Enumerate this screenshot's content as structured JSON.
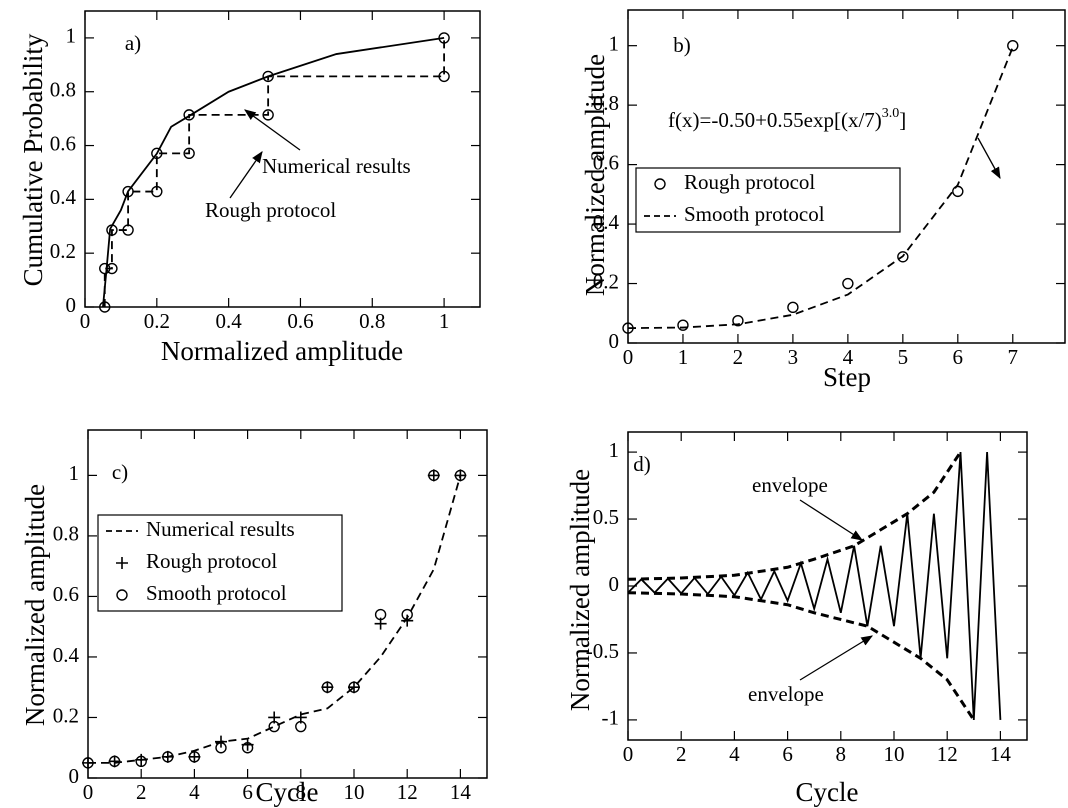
{
  "chart_data": [
    {
      "type": "line",
      "label": "a)",
      "xlabel": "Normalized amplitude",
      "ylabel": "Cumulative Probability",
      "xlim": [
        0,
        1.1
      ],
      "ylim": [
        0,
        1.1
      ],
      "xticks": [
        0,
        0.2,
        0.4,
        0.6,
        0.8,
        1
      ],
      "yticks": [
        0,
        0.2,
        0.4,
        0.6,
        0.8,
        1
      ],
      "series": [
        {
          "name": "Numerical results",
          "color": "#000000",
          "dash": false,
          "marker": "none",
          "x": [
            0.05,
            0.06,
            0.07,
            0.1,
            0.12,
            0.2,
            0.24,
            0.29,
            0.4,
            0.51,
            0.7,
            1
          ],
          "values": [
            0,
            0.14,
            0.29,
            0.36,
            0.43,
            0.57,
            0.67,
            0.71,
            0.8,
            0.857,
            0.94,
            1
          ]
        },
        {
          "name": "Rough protocol",
          "color": "#000000",
          "dash": true,
          "marker": "circle",
          "x": [
            0.055,
            0.055,
            0.075,
            0.075,
            0.12,
            0.12,
            0.2,
            0.2,
            0.29,
            0.29,
            0.51,
            0.51,
            1,
            1
          ],
          "values": [
            0,
            0.143,
            0.143,
            0.286,
            0.286,
            0.429,
            0.429,
            0.571,
            0.571,
            0.714,
            0.714,
            0.857,
            0.857,
            1
          ]
        }
      ],
      "annotations": [
        "Numerical results",
        "Rough protocol"
      ]
    },
    {
      "type": "line",
      "label": "b)",
      "xlabel": "Step",
      "ylabel": "Normalized amplitude",
      "xlim": [
        0,
        7.95
      ],
      "ylim": [
        0,
        1.12
      ],
      "xticks": [
        0,
        1,
        2,
        3,
        4,
        5,
        6,
        7
      ],
      "yticks": [
        0,
        0.2,
        0.4,
        0.6,
        0.8,
        1
      ],
      "legend": "center left",
      "series": [
        {
          "name": "Rough protocol",
          "color": "#000000",
          "dash": false,
          "line": false,
          "marker": "circle",
          "x": [
            0,
            1,
            2,
            3,
            4,
            5,
            6,
            7
          ],
          "values": [
            0.05,
            0.06,
            0.075,
            0.12,
            0.2,
            0.29,
            0.51,
            1
          ]
        },
        {
          "name": "Smooth protocol",
          "color": "#000000",
          "dash": true,
          "marker": "none",
          "x": [
            0,
            1,
            2,
            3,
            4,
            5,
            6,
            7
          ],
          "values": [
            0.05,
            0.052,
            0.063,
            0.095,
            0.163,
            0.292,
            0.532,
            0.995
          ]
        }
      ],
      "formula": [
        "f(x)=-0.50+0.55exp[(x/7)",
        "3.0",
        "]"
      ]
    },
    {
      "type": "line",
      "label": "c)",
      "xlabel": "Cycle",
      "ylabel": "Normalized amplitude",
      "xlim": [
        0,
        15
      ],
      "ylim": [
        0,
        1.15
      ],
      "xticks": [
        0,
        2,
        4,
        6,
        8,
        10,
        12,
        14
      ],
      "yticks": [
        0,
        0.2,
        0.4,
        0.6,
        0.8,
        1
      ],
      "legend": "center left",
      "series": [
        {
          "name": "Numerical results",
          "color": "#000000",
          "dash": true,
          "marker": "none",
          "x": [
            0,
            1,
            2,
            3,
            4,
            5,
            6,
            7,
            8,
            9,
            10,
            11,
            12,
            13,
            14
          ],
          "values": [
            0.05,
            0.05,
            0.06,
            0.07,
            0.09,
            0.12,
            0.13,
            0.17,
            0.21,
            0.23,
            0.3,
            0.4,
            0.53,
            0.69,
            1
          ]
        },
        {
          "name": "Rough protocol",
          "color": "#000000",
          "dash": false,
          "line": false,
          "marker": "plus",
          "x": [
            0,
            1,
            2,
            3,
            4,
            5,
            6,
            7,
            8,
            9,
            10,
            11,
            12,
            13,
            14
          ],
          "values": [
            0.05,
            0.055,
            0.06,
            0.07,
            0.07,
            0.12,
            0.11,
            0.2,
            0.2,
            0.3,
            0.3,
            0.51,
            0.52,
            1,
            1
          ]
        },
        {
          "name": "Smooth protocol",
          "color": "#000000",
          "dash": false,
          "line": false,
          "marker": "circle",
          "x": [
            0,
            1,
            2,
            3,
            4,
            5,
            6,
            7,
            8,
            9,
            10,
            11,
            12,
            13,
            14
          ],
          "values": [
            0.05,
            0.055,
            0.055,
            0.07,
            0.07,
            0.1,
            0.1,
            0.17,
            0.17,
            0.3,
            0.3,
            0.54,
            0.54,
            1,
            1
          ]
        }
      ]
    },
    {
      "type": "line",
      "label": "d)",
      "xlabel": "Cycle",
      "ylabel": "Normalized amplitude",
      "xlim": [
        0,
        15
      ],
      "ylim": [
        -1.15,
        1.15
      ],
      "xticks": [
        0,
        2,
        4,
        6,
        8,
        10,
        12,
        14
      ],
      "yticks": [
        -1,
        -0.5,
        0,
        0.5,
        1
      ],
      "series": [
        {
          "color": "#000000",
          "dash": false,
          "marker": "none",
          "x": [
            0,
            0.5,
            1,
            1.5,
            2,
            2.5,
            3,
            3.5,
            4,
            4.5,
            5,
            5.5,
            6,
            6.5,
            7,
            7.5,
            8,
            8.5,
            9,
            9.5,
            10,
            10.5,
            11,
            11.5,
            12,
            12.5,
            13,
            13.5,
            14
          ],
          "values": [
            -0.05,
            0.05,
            -0.05,
            0.055,
            -0.055,
            0.06,
            -0.06,
            0.07,
            -0.07,
            0.1,
            -0.1,
            0.11,
            -0.11,
            0.17,
            -0.17,
            0.2,
            -0.2,
            0.3,
            -0.3,
            0.3,
            -0.3,
            0.54,
            -0.54,
            0.54,
            -0.54,
            1,
            -1,
            1,
            -1
          ]
        },
        {
          "color": "#000000",
          "dash": true,
          "width": 3,
          "marker": "none",
          "x": [
            0,
            2,
            4,
            6,
            7,
            8.5,
            10.5,
            11.5,
            12.5
          ],
          "values": [
            0.05,
            0.06,
            0.08,
            0.14,
            0.2,
            0.3,
            0.54,
            0.7,
            1
          ]
        },
        {
          "color": "#000000",
          "dash": true,
          "width": 3,
          "marker": "none",
          "x": [
            0,
            2,
            4,
            6,
            7,
            9,
            11,
            12,
            13
          ],
          "values": [
            -0.05,
            -0.06,
            -0.08,
            -0.14,
            -0.2,
            -0.3,
            -0.54,
            -0.7,
            -1
          ]
        }
      ],
      "annotations": [
        "envelope",
        "envelope"
      ]
    }
  ]
}
